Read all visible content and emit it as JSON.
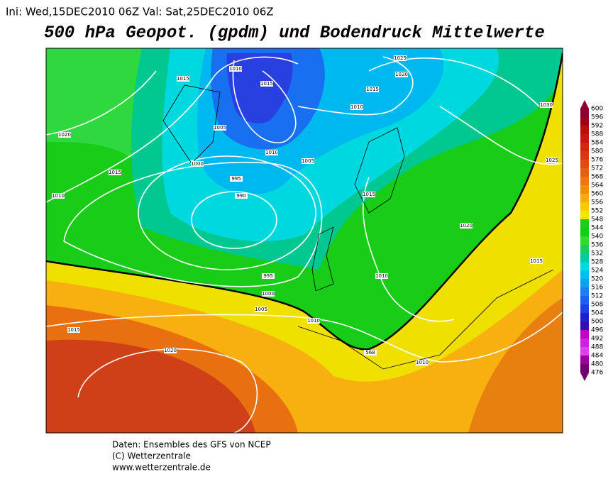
{
  "header": {
    "run_info": "Ini:  Wed,15DEC2010  06Z Val:  Sat,25DEC2010  06Z",
    "title": "500 hPa Geopot. (gpdm) und Bodendruck Mittelwerte"
  },
  "colorbar": {
    "labels": [
      600,
      596,
      592,
      588,
      584,
      580,
      576,
      572,
      568,
      564,
      560,
      556,
      552,
      548,
      544,
      540,
      536,
      532,
      528,
      524,
      520,
      516,
      512,
      508,
      504,
      500,
      496,
      492,
      488,
      484,
      480,
      476
    ],
    "colors": [
      "#8c0030",
      "#a00018",
      "#b41010",
      "#c41818",
      "#d02810",
      "#d83810",
      "#e04c10",
      "#e86010",
      "#f07410",
      "#f48c10",
      "#f8a810",
      "#f8c800",
      "#f0e800",
      "#20c820",
      "#10d010",
      "#30dc30",
      "#20c860",
      "#00c8a0",
      "#00d8e0",
      "#00c0f0",
      "#10a0f0",
      "#1880f0",
      "#2060f0",
      "#2040e0",
      "#2020c8",
      "#3010b0",
      "#c000c0",
      "#d020e0",
      "#e040f0",
      "#a000a0",
      "#700070"
    ]
  },
  "map": {
    "isobar_labels": [
      "1010",
      "1015",
      "1025",
      "1020",
      "1015",
      "1015",
      "1010",
      "1030",
      "1020",
      "1005",
      "1010",
      "1005",
      "1025",
      "1000",
      "995",
      "1015",
      "1010",
      "990",
      "1015",
      "1020",
      "995",
      "1000",
      "1015",
      "1005",
      "1010",
      "1010",
      "1015",
      "1020",
      "1010",
      "568"
    ]
  },
  "footer": {
    "lines": [
      "Daten: Ensembles des GFS von NCEP",
      "(C) Wetterzentrale",
      "www.wetterzentrale.de"
    ]
  }
}
